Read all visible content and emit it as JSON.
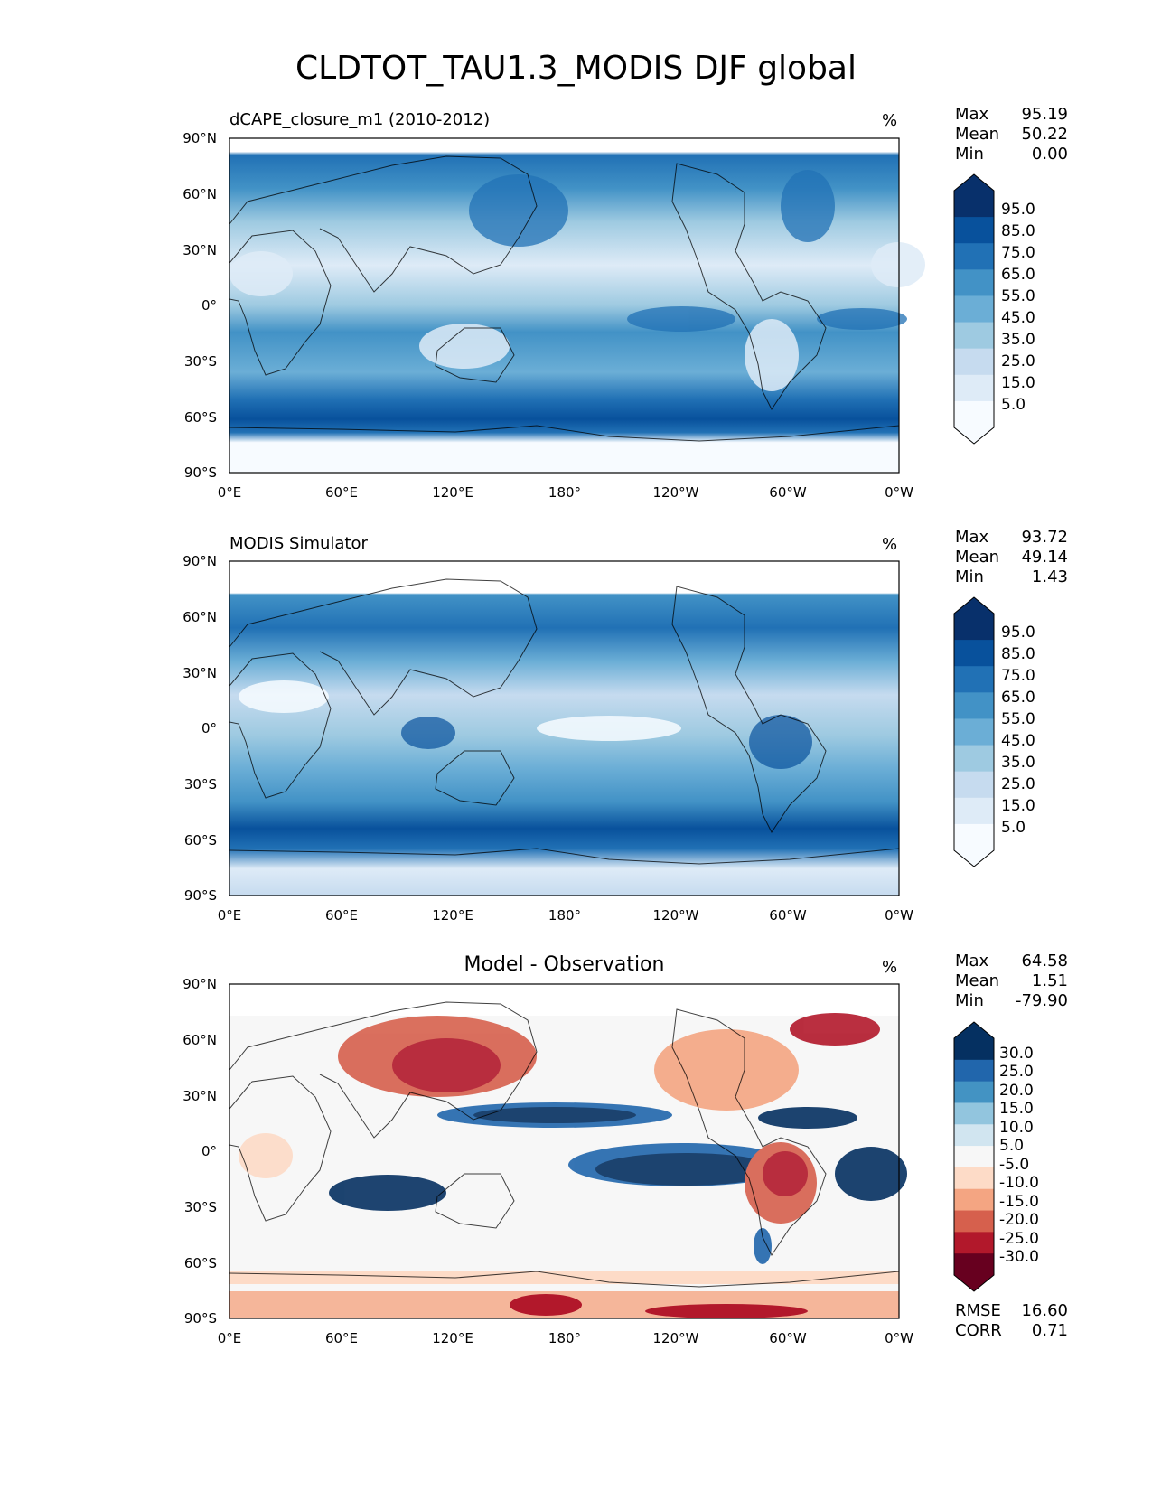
{
  "figure": {
    "title": "CLDTOT_TAU1.3_MODIS DJF global"
  },
  "panels": [
    {
      "id": "model",
      "title": "dCAPE_closure_m1 (2010-2012)",
      "units": "%",
      "stats": [
        {
          "label": "Max",
          "value": "95.19"
        },
        {
          "label": "Mean",
          "value": "50.22"
        },
        {
          "label": "Min",
          "value": "0.00"
        }
      ],
      "colorbar": {
        "labels": [
          "95.0",
          "85.0",
          "75.0",
          "65.0",
          "55.0",
          "45.0",
          "35.0",
          "25.0",
          "15.0",
          "5.0"
        ],
        "colors": [
          "#08306b",
          "#08519c",
          "#2171b5",
          "#4292c6",
          "#6baed6",
          "#9ecae1",
          "#c6dbef",
          "#deebf7",
          "#f7fbff"
        ]
      }
    },
    {
      "id": "obs",
      "title": "MODIS Simulator",
      "units": "%",
      "stats": [
        {
          "label": "Max",
          "value": "93.72"
        },
        {
          "label": "Mean",
          "value": "49.14"
        },
        {
          "label": "Min",
          "value": "1.43"
        }
      ],
      "colorbar": {
        "labels": [
          "95.0",
          "85.0",
          "75.0",
          "65.0",
          "55.0",
          "45.0",
          "35.0",
          "25.0",
          "15.0",
          "5.0"
        ],
        "colors": [
          "#08306b",
          "#08519c",
          "#2171b5",
          "#4292c6",
          "#6baed6",
          "#9ecae1",
          "#c6dbef",
          "#deebf7",
          "#f7fbff"
        ]
      }
    },
    {
      "id": "diff",
      "title": "Model - Observation",
      "units": "%",
      "stats": [
        {
          "label": "Max",
          "value": "64.58"
        },
        {
          "label": "Mean",
          "value": "1.51"
        },
        {
          "label": "Min",
          "value": "-79.90"
        }
      ],
      "extra_stats": [
        {
          "label": "RMSE",
          "value": "16.60"
        },
        {
          "label": "CORR",
          "value": "0.71"
        }
      ],
      "colorbar": {
        "labels": [
          "30.0",
          "25.0",
          "20.0",
          "15.0",
          "10.0",
          "5.0",
          "-5.0",
          "-10.0",
          "-15.0",
          "-20.0",
          "-25.0",
          "-30.0"
        ],
        "colors": [
          "#053061",
          "#2166ac",
          "#4393c3",
          "#92c5de",
          "#d1e5f0",
          "#f7f7f7",
          "#fddbc7",
          "#f4a582",
          "#d6604d",
          "#b2182b",
          "#67001f"
        ]
      }
    }
  ],
  "axes": {
    "lon_labels": [
      "0°E",
      "60°E",
      "120°E",
      "180°",
      "120°W",
      "60°W",
      "0°W"
    ],
    "lat_labels": [
      "90°N",
      "60°N",
      "30°N",
      "0°",
      "30°S",
      "60°S",
      "90°S"
    ]
  }
}
